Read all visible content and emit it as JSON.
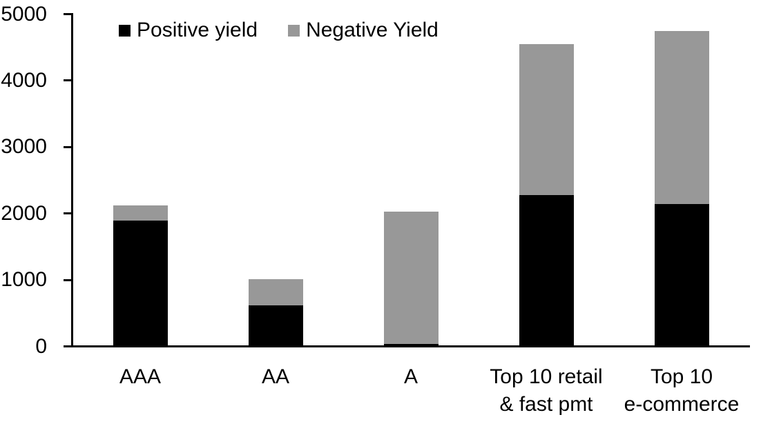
{
  "chart_data": {
    "type": "bar",
    "stacked": true,
    "title": "",
    "xlabel": "",
    "ylabel": "",
    "categories": [
      "AAA",
      "AA",
      "A",
      "Top 10 retail\n& fast pmt",
      "Top 10\ne-commerce"
    ],
    "series": [
      {
        "name": "Positive yield",
        "color": "#000000",
        "values": [
          1890,
          620,
          40,
          2280,
          2150
        ]
      },
      {
        "name": "Negative Yield",
        "color": "#989898",
        "values": [
          230,
          390,
          1990,
          2270,
          2600
        ]
      }
    ],
    "totals": [
      2120,
      1010,
      2030,
      4550,
      4750
    ],
    "ylim": [
      0,
      5000
    ],
    "yticks": [
      0,
      1000,
      2000,
      3000,
      4000,
      5000
    ],
    "grid": false,
    "legend_position": "top-left",
    "axis_color": "#000000",
    "background_color": "#ffffff"
  }
}
